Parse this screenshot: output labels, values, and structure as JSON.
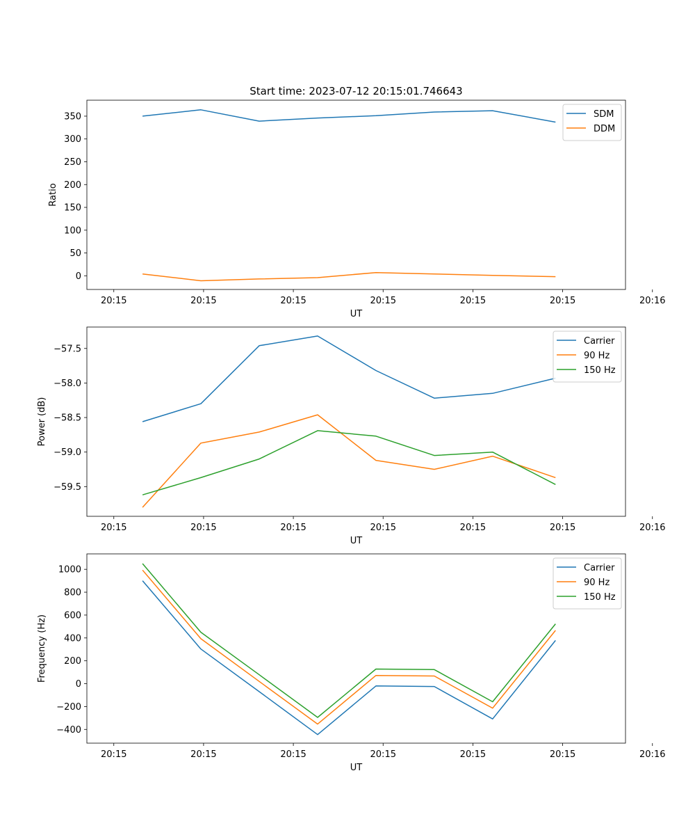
{
  "figure_title": "Start time: 2023-07-12 20:15:01.746643",
  "colors": {
    "blue": "#1f77b4",
    "orange": "#ff7f0e",
    "green": "#2ca02c"
  },
  "chart_data": [
    {
      "type": "line",
      "name": "ratio",
      "title": "Start time: 2023-07-12 20:15:01.746643",
      "xlabel": "UT",
      "ylabel": "Ratio",
      "xlim": [
        -0.3,
        5.7
      ],
      "ylim": [
        -30,
        385
      ],
      "xticks": [
        0,
        1,
        2,
        3,
        4,
        5,
        6
      ],
      "xtick_labels": [
        "20:15",
        "20:15",
        "20:15",
        "20:15",
        "20:15",
        "20:15",
        "20:16"
      ],
      "yticks": [
        0,
        50,
        100,
        150,
        200,
        250,
        300,
        350
      ],
      "ytick_labels": [
        "0",
        "50",
        "100",
        "150",
        "200",
        "250",
        "300",
        "350"
      ],
      "legend": "top-right",
      "x": [
        0.32,
        0.97,
        1.62,
        2.27,
        2.92,
        3.57,
        4.22,
        4.92
      ],
      "series": [
        {
          "name": "SDM",
          "color": "#1f77b4",
          "values": [
            350,
            364,
            339,
            346,
            351,
            359,
            362,
            337
          ]
        },
        {
          "name": "DDM",
          "color": "#ff7f0e",
          "values": [
            4,
            -11,
            -7,
            -4,
            7,
            4,
            1,
            -2
          ]
        }
      ]
    },
    {
      "type": "line",
      "name": "power",
      "title": "",
      "xlabel": "UT",
      "ylabel": "Power (dB)",
      "xlim": [
        -0.3,
        5.7
      ],
      "ylim": [
        -59.93,
        -57.19
      ],
      "xticks": [
        0,
        1,
        2,
        3,
        4,
        5,
        6
      ],
      "xtick_labels": [
        "20:15",
        "20:15",
        "20:15",
        "20:15",
        "20:15",
        "20:15",
        "20:16"
      ],
      "yticks": [
        -59.5,
        -59.0,
        -58.5,
        -58.0,
        -57.5
      ],
      "ytick_labels": [
        "−59.5",
        "−59.0",
        "−58.5",
        "−58.0",
        "−57.5"
      ],
      "legend": "top-right",
      "x": [
        0.32,
        0.97,
        1.62,
        2.27,
        2.92,
        3.57,
        4.22,
        4.92
      ],
      "series": [
        {
          "name": "Carrier",
          "color": "#1f77b4",
          "values": [
            -58.56,
            -58.3,
            -57.46,
            -57.32,
            -57.82,
            -58.22,
            -58.15,
            -57.93
          ]
        },
        {
          "name": "90 Hz",
          "color": "#ff7f0e",
          "values": [
            -59.8,
            -58.87,
            -58.71,
            -58.46,
            -59.12,
            -59.25,
            -59.06,
            -59.37
          ]
        },
        {
          "name": "150 Hz",
          "color": "#2ca02c",
          "values": [
            -59.62,
            -59.37,
            -59.1,
            -58.69,
            -58.77,
            -59.05,
            -59.0,
            -59.47
          ]
        }
      ]
    },
    {
      "type": "line",
      "name": "frequency",
      "title": "",
      "xlabel": "UT",
      "ylabel": "Frequency (Hz)",
      "xlim": [
        -0.3,
        5.7
      ],
      "ylim": [
        -520,
        1135
      ],
      "xticks": [
        0,
        1,
        2,
        3,
        4,
        5,
        6
      ],
      "xtick_labels": [
        "20:15",
        "20:15",
        "20:15",
        "20:15",
        "20:15",
        "20:15",
        "20:16"
      ],
      "yticks": [
        -400,
        -200,
        0,
        200,
        400,
        600,
        800,
        1000
      ],
      "ytick_labels": [
        "−400",
        "−200",
        "0",
        "200",
        "400",
        "600",
        "800",
        "1000"
      ],
      "legend": "top-right",
      "x": [
        0.32,
        0.97,
        1.62,
        2.27,
        2.92,
        3.57,
        4.22,
        4.92
      ],
      "series": [
        {
          "name": "Carrier",
          "color": "#1f77b4",
          "values": [
            900,
            303,
            -70,
            -445,
            -20,
            -25,
            -308,
            378
          ]
        },
        {
          "name": "90 Hz",
          "color": "#ff7f0e",
          "values": [
            993,
            393,
            20,
            -353,
            72,
            67,
            -214,
            466
          ]
        },
        {
          "name": "150 Hz",
          "color": "#2ca02c",
          "values": [
            1050,
            450,
            78,
            -295,
            128,
            123,
            -158,
            523
          ]
        }
      ]
    }
  ]
}
